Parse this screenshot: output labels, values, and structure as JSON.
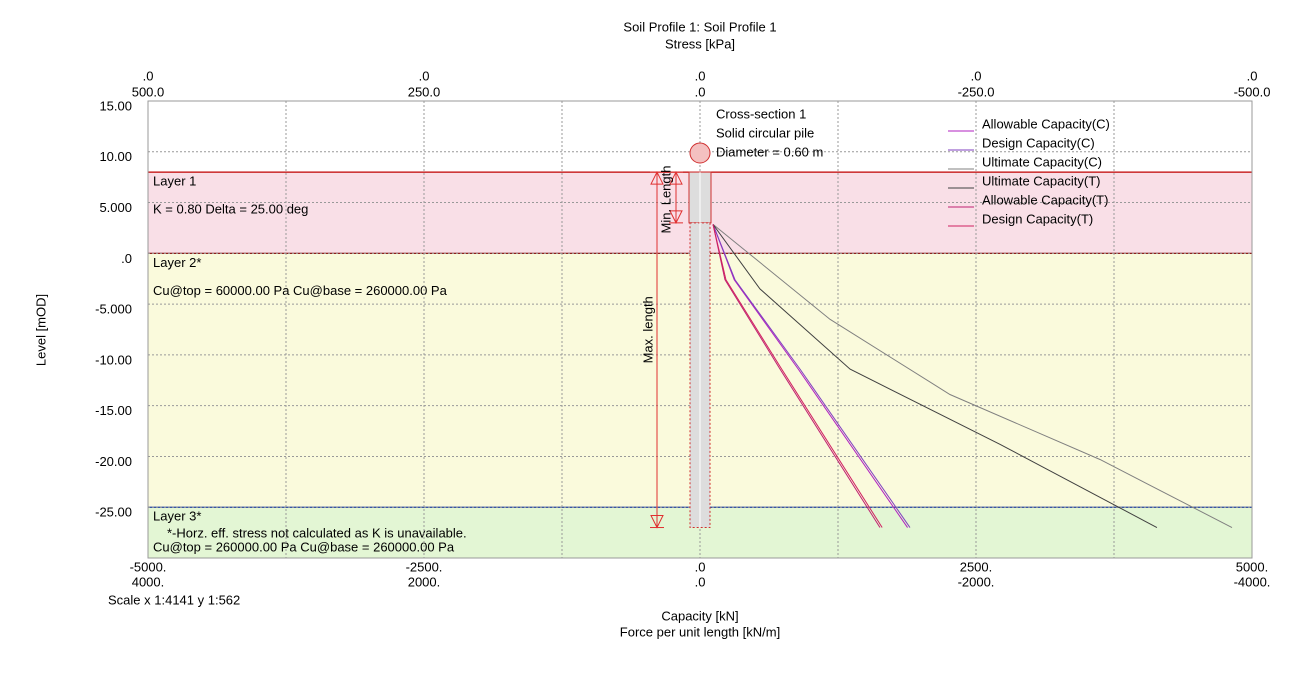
{
  "chart_data": {
    "type": "line",
    "title": "Soil Profile 1: Soil Profile 1",
    "top_axis_label": "Stress [kPa]",
    "y_axis_label": "Level [mOD]",
    "x_axis_label": "Capacity [kN]",
    "x2_axis_label": "Force per unit length [kN/m]",
    "scale_note": "Scale x 1:4141  y 1:562",
    "xlim": [
      -5000,
      5000
    ],
    "xticks": [
      {
        "value": -5000,
        "label": "-5000."
      },
      {
        "value": -2500,
        "label": "-2500."
      },
      {
        "value": 0,
        "label": ".0"
      },
      {
        "value": 2500,
        "label": "2500."
      },
      {
        "value": 5000,
        "label": "5000."
      }
    ],
    "x_minor_grid": [
      -3750,
      -1250,
      1250,
      3750
    ],
    "x2lim": [
      4000,
      -4000
    ],
    "x2ticks": [
      {
        "value": 4000,
        "label": "4000."
      },
      {
        "value": 2000,
        "label": "2000."
      },
      {
        "value": 0,
        "label": ".0"
      },
      {
        "value": -2000,
        "label": "-2000."
      },
      {
        "value": -4000,
        "label": "-4000."
      }
    ],
    "top_xlim": [
      500,
      -500
    ],
    "top_xticks": [
      {
        "value": 500,
        "label": "500.0"
      },
      {
        "value": 250,
        "label": "250.0"
      },
      {
        "value": 0,
        "label": ".0"
      },
      {
        "value": -250,
        "label": "-250.0"
      },
      {
        "value": -500,
        "label": "-500.0"
      }
    ],
    "top_upper_labels": [
      ".0",
      ".0",
      ".0",
      ".0",
      ".0"
    ],
    "ylim": [
      -30,
      15
    ],
    "yticks": [
      {
        "value": 15,
        "label": "15.00"
      },
      {
        "value": 10,
        "label": "10.00"
      },
      {
        "value": 5,
        "label": "5.000"
      },
      {
        "value": 0,
        "label": ".0"
      },
      {
        "value": -5,
        "label": "-5.000"
      },
      {
        "value": -10,
        "label": "-10.00"
      },
      {
        "value": -15,
        "label": "-15.00"
      },
      {
        "value": -20,
        "label": "-20.00"
      },
      {
        "value": -25,
        "label": "-25.00"
      }
    ],
    "grid": true,
    "legend_position": "upper right",
    "layers": [
      {
        "name": "Layer 1",
        "top": 8,
        "bottom": 0,
        "color": "#f9dfe7",
        "line_color": "#c00000",
        "lines": [
          "K = 0.80 Delta = 25.00 deg"
        ]
      },
      {
        "name": "Layer 2*",
        "top": 0,
        "bottom": -25,
        "color": "#fafadc",
        "line_color": "#800000",
        "lines": [
          "Cu@top = 60000.00 Pa Cu@base = 260000.00 Pa"
        ]
      },
      {
        "name": "Layer 3*",
        "top": -25,
        "bottom": -30,
        "color": "#e3f6d4",
        "line_color": "#2040a0",
        "lines": [
          "*-Horz. eff. stress not calculated as K is unavailable.",
          "Cu@top = 260000.00 Pa Cu@base = 260000.00 Pa"
        ]
      }
    ],
    "pile": {
      "top": 8,
      "min_toe": 3,
      "max_toe": -27,
      "min_label": "Min. Length",
      "max_label": "Max. length",
      "cross_section": [
        "Cross-section 1",
        "Solid circular pile",
        "Diameter = 0.60 m"
      ]
    },
    "series": [
      {
        "name": "Allowable Capacity(C)",
        "color": "#b020c0",
        "x": [
          118,
          310,
          890,
          1880
        ],
        "values": [
          2.85,
          -2.6,
          -11.4,
          -27
        ]
      },
      {
        "name": "Design Capacity(C)",
        "color": "#8040c0",
        "x": [
          118,
          317,
          906,
          1902
        ],
        "values": [
          2.85,
          -2.6,
          -11.4,
          -27
        ]
      },
      {
        "name": "Ultimate Capacity(C)",
        "color": "#808080",
        "x": [
          118,
          453,
          1178,
          2264,
          3623,
          4819
        ],
        "values": [
          2.85,
          -0.1,
          -6.5,
          -13.9,
          -20.3,
          -27
        ]
      },
      {
        "name": "Ultimate Capacity(T)",
        "color": "#404040",
        "x": [
          118,
          543,
          1359,
          2717,
          4139
        ],
        "values": [
          2.85,
          -3.5,
          -11.4,
          -18.8,
          -27
        ]
      },
      {
        "name": "Allowable Capacity(T)",
        "color": "#c02070",
        "x": [
          118,
          226,
          725,
          1630
        ],
        "values": [
          2.85,
          -2.6,
          -11.4,
          -27
        ]
      },
      {
        "name": "Design Capacity(T)",
        "color": "#d02060",
        "x": [
          118,
          235,
          740,
          1650
        ],
        "values": [
          2.85,
          -2.6,
          -11.4,
          -27
        ]
      }
    ]
  }
}
